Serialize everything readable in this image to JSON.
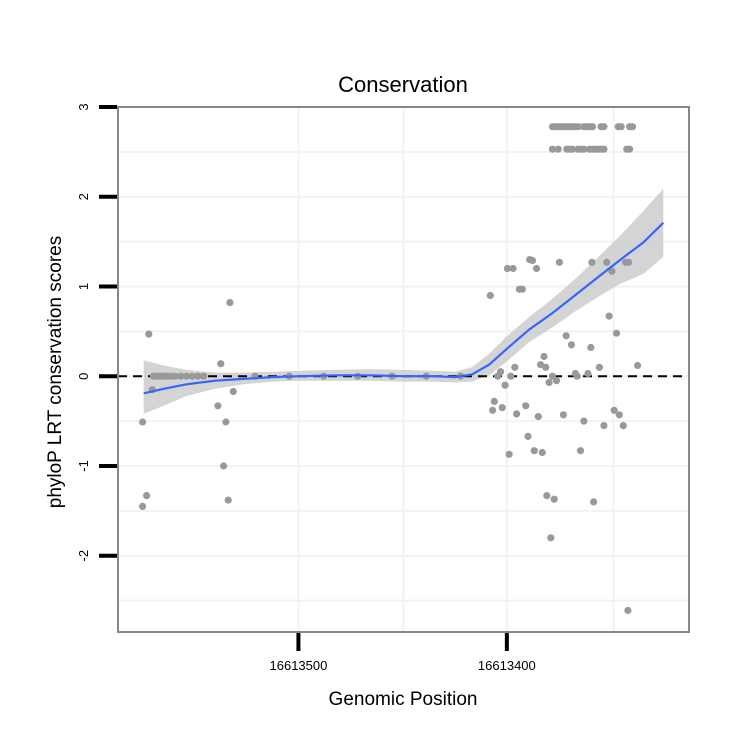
{
  "chart_data": {
    "type": "scatter",
    "title": "Conservation",
    "xlabel": "Genomic Position",
    "ylabel": "phyloP LRT conservation scores",
    "xlim": [
      0,
      100
    ],
    "ylim": [
      -2.85,
      3.0
    ],
    "y_ticks": [
      {
        "value": 3,
        "label": "3"
      },
      {
        "value": 2,
        "label": "2"
      },
      {
        "value": 1,
        "label": "1"
      },
      {
        "value": 0,
        "label": "0"
      },
      {
        "value": -1,
        "label": "-1"
      },
      {
        "value": -2,
        "label": "-2"
      }
    ],
    "x_ticks": [
      {
        "value": 31.6,
        "label": "16613500"
      },
      {
        "value": 68.1,
        "label": "16613400"
      }
    ],
    "minor_gridlines_x": [
      50,
      86.8
    ],
    "minor_gridlines_y": [
      2.5,
      1.5,
      0.5,
      -0.5,
      -1.5,
      -2.5
    ],
    "reference_line": {
      "y": 0,
      "style": "dashed"
    },
    "smooth": {
      "color": "#3366ff",
      "ribbon_color": "#cccccc",
      "points": [
        {
          "x": 4.5,
          "y": -0.19,
          "lo": -0.42,
          "hi": 0.18
        },
        {
          "x": 8,
          "y": -0.14,
          "lo": -0.33,
          "hi": 0.12
        },
        {
          "x": 12,
          "y": -0.09,
          "lo": -0.22,
          "hi": 0.07
        },
        {
          "x": 17,
          "y": -0.05,
          "lo": -0.14,
          "hi": 0.04
        },
        {
          "x": 22,
          "y": -0.03,
          "lo": -0.09,
          "hi": 0.04
        },
        {
          "x": 27,
          "y": -0.01,
          "lo": -0.06,
          "hi": 0.05
        },
        {
          "x": 32,
          "y": 0.0,
          "lo": -0.05,
          "hi": 0.06
        },
        {
          "x": 38,
          "y": 0.01,
          "lo": -0.05,
          "hi": 0.07
        },
        {
          "x": 44,
          "y": 0.01,
          "lo": -0.05,
          "hi": 0.08
        },
        {
          "x": 50,
          "y": 0.0,
          "lo": -0.06,
          "hi": 0.07
        },
        {
          "x": 55,
          "y": 0.0,
          "lo": -0.06,
          "hi": 0.06
        },
        {
          "x": 59,
          "y": -0.01,
          "lo": -0.07,
          "hi": 0.05
        },
        {
          "x": 62,
          "y": 0.02,
          "lo": -0.06,
          "hi": 0.1
        },
        {
          "x": 65,
          "y": 0.13,
          "lo": 0.01,
          "hi": 0.25
        },
        {
          "x": 68,
          "y": 0.3,
          "lo": 0.16,
          "hi": 0.44
        },
        {
          "x": 72,
          "y": 0.52,
          "lo": 0.38,
          "hi": 0.66
        },
        {
          "x": 76,
          "y": 0.7,
          "lo": 0.54,
          "hi": 0.86
        },
        {
          "x": 80,
          "y": 0.9,
          "lo": 0.72,
          "hi": 1.08
        },
        {
          "x": 84,
          "y": 1.1,
          "lo": 0.88,
          "hi": 1.32
        },
        {
          "x": 88,
          "y": 1.3,
          "lo": 1.03,
          "hi": 1.57
        },
        {
          "x": 92,
          "y": 1.49,
          "lo": 1.14,
          "hi": 1.84
        },
        {
          "x": 95.5,
          "y": 1.71,
          "lo": 1.33,
          "hi": 2.09
        }
      ]
    },
    "series": [
      {
        "name": "scores",
        "color": "#999999",
        "points": [
          [
            4.3,
            -0.51
          ],
          [
            4.3,
            -1.45
          ],
          [
            5.0,
            -1.33
          ],
          [
            5.4,
            0.47
          ],
          [
            6.0,
            -0.15
          ],
          [
            6.2,
            0.0
          ],
          [
            6.8,
            0.0
          ],
          [
            7.4,
            0.0
          ],
          [
            8.0,
            0.0
          ],
          [
            8.6,
            0.0
          ],
          [
            9.2,
            0.0
          ],
          [
            10.0,
            0.0
          ],
          [
            11.0,
            0.0
          ],
          [
            12.0,
            0.0
          ],
          [
            13.0,
            0.0
          ],
          [
            14.0,
            0.0
          ],
          [
            15.0,
            0.0
          ],
          [
            17.5,
            -0.33
          ],
          [
            18.0,
            0.14
          ],
          [
            18.5,
            -1.0
          ],
          [
            18.9,
            -0.51
          ],
          [
            19.3,
            -1.38
          ],
          [
            19.6,
            0.82
          ],
          [
            20.2,
            -0.17
          ],
          [
            24.0,
            0.0
          ],
          [
            30.0,
            0.0
          ],
          [
            36.0,
            0.0
          ],
          [
            42.0,
            0.0
          ],
          [
            48.0,
            0.0
          ],
          [
            54.0,
            0.0
          ],
          [
            60.0,
            0.0
          ],
          [
            65.2,
            0.9
          ],
          [
            65.6,
            -0.38
          ],
          [
            65.9,
            -0.28
          ],
          [
            66.5,
            0.0
          ],
          [
            67.0,
            0.05
          ],
          [
            67.3,
            -0.35
          ],
          [
            67.8,
            -0.1
          ],
          [
            68.2,
            1.2
          ],
          [
            68.5,
            -0.87
          ],
          [
            68.8,
            0.0
          ],
          [
            69.2,
            1.2
          ],
          [
            69.5,
            0.1
          ],
          [
            69.8,
            -0.42
          ],
          [
            70.3,
            0.97
          ],
          [
            70.8,
            0.97
          ],
          [
            71.4,
            -0.33
          ],
          [
            71.8,
            -0.67
          ],
          [
            72.1,
            1.3
          ],
          [
            72.6,
            1.29
          ],
          [
            72.9,
            -0.83
          ],
          [
            73.3,
            1.2
          ],
          [
            73.6,
            -0.45
          ],
          [
            74.0,
            0.13
          ],
          [
            74.3,
            -0.85
          ],
          [
            74.6,
            0.22
          ],
          [
            74.9,
            0.1
          ],
          [
            75.1,
            -1.33
          ],
          [
            75.5,
            -0.07
          ],
          [
            75.8,
            -1.8
          ],
          [
            76.1,
            0.0
          ],
          [
            76.4,
            -1.37
          ],
          [
            76.8,
            -0.05
          ],
          [
            77.3,
            1.27
          ],
          [
            78.0,
            -0.43
          ],
          [
            78.5,
            0.45
          ],
          [
            79.4,
            0.35
          ],
          [
            80.1,
            0.03
          ],
          [
            80.4,
            0.0
          ],
          [
            81.0,
            -0.83
          ],
          [
            81.6,
            -0.5
          ],
          [
            82.3,
            0.03
          ],
          [
            82.8,
            0.32
          ],
          [
            83.0,
            1.27
          ],
          [
            83.3,
            -1.4
          ],
          [
            84.3,
            0.1
          ],
          [
            85.1,
            -0.55
          ],
          [
            85.6,
            1.27
          ],
          [
            86.0,
            0.67
          ],
          [
            86.5,
            1.17
          ],
          [
            86.9,
            -0.38
          ],
          [
            87.3,
            0.48
          ],
          [
            87.8,
            -0.43
          ],
          [
            88.5,
            -0.55
          ],
          [
            88.9,
            1.27
          ],
          [
            89.4,
            1.27
          ],
          [
            89.3,
            -2.61
          ],
          [
            91.0,
            0.12
          ]
        ]
      },
      {
        "name": "upper band 2.78",
        "color": "#999999",
        "y": 2.78,
        "x": [
          76.1,
          76.6,
          77.1,
          77.6,
          78.1,
          78.6,
          79.1,
          79.6,
          80.1,
          80.6,
          81.6,
          82.1,
          82.6,
          83.1,
          84.6,
          85.1,
          87.6,
          88.1,
          89.6,
          90.1
        ]
      },
      {
        "name": "upper band 2.53",
        "color": "#999999",
        "y": 2.53,
        "x": [
          76.1,
          77.1,
          78.6,
          79.1,
          79.6,
          80.6,
          81.1,
          81.6,
          82.6,
          83.1,
          83.6,
          84.1,
          84.6,
          85.1,
          89.1,
          89.6
        ]
      }
    ]
  }
}
